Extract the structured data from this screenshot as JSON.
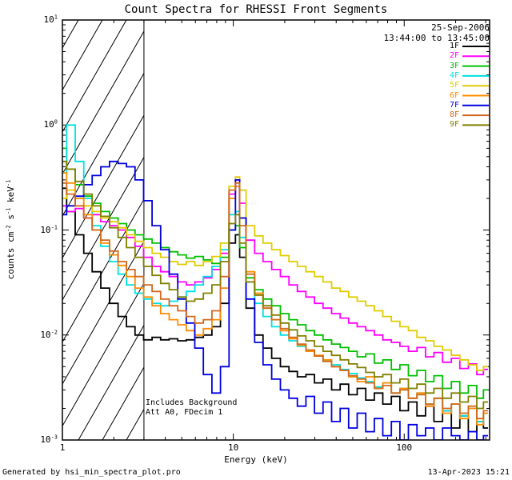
{
  "title": "Count Spectra for RHESSI Front Segments",
  "header": {
    "date": "25-Sep-2006",
    "time_range": "13:44:00 to 13:45:00"
  },
  "annotations": {
    "line1": "Includes Background",
    "line2": "Att A0, FDecim 1"
  },
  "footer": {
    "left": "Generated by hsi_min_spectra_plot.pro",
    "right": "13-Apr-2023 15:21"
  },
  "axes": {
    "xlabel": "Energy (keV)",
    "ylabel_parts": [
      {
        "text": "counts cm"
      },
      {
        "sup": "-2"
      },
      {
        "text": " s"
      },
      {
        "sup": "-1"
      },
      {
        "text": " keV"
      },
      {
        "sup": "-1"
      }
    ],
    "x_ticks": [
      {
        "value": 1,
        "label": "1"
      },
      {
        "value": 10,
        "label": "10"
      },
      {
        "value": 100,
        "label": "100"
      }
    ],
    "y_ticks": [
      {
        "value": 10,
        "base": "10",
        "exp": "1"
      },
      {
        "value": 1,
        "base": "10",
        "exp": "0"
      },
      {
        "value": 0.1,
        "base": "10",
        "exp": "-1"
      },
      {
        "value": 0.01,
        "base": "10",
        "exp": "-2"
      },
      {
        "value": 0.001,
        "base": "10",
        "exp": "-3"
      }
    ]
  },
  "chart_data": {
    "type": "line",
    "style": "histogram-steps",
    "x_scale": "log",
    "y_scale": "log",
    "xlim": [
      1,
      316
    ],
    "ylim": [
      0.001,
      10
    ],
    "xlabel": "Energy (keV)",
    "ylabel": "counts cm-2 s-1 keV-1",
    "hatch_region": {
      "xmin": 1,
      "xmax": 3
    },
    "legend_position": "top-right",
    "x": [
      1.0,
      1.12,
      1.26,
      1.41,
      1.58,
      1.78,
      2.0,
      2.24,
      2.51,
      2.82,
      3.16,
      3.55,
      3.98,
      4.47,
      5.01,
      5.62,
      6.31,
      7.08,
      7.94,
      8.91,
      10.0,
      10.6,
      11.2,
      12.6,
      14.1,
      15.8,
      17.8,
      20.0,
      22.4,
      25.1,
      28.2,
      31.6,
      35.5,
      39.8,
      44.7,
      50.1,
      56.2,
      63.1,
      70.8,
      79.4,
      89.1,
      100,
      112,
      126,
      141,
      158,
      178,
      200,
      224,
      251,
      282,
      300
    ],
    "series": [
      {
        "name": "1F",
        "color": "#000000",
        "values": [
          0.25,
          0.15,
          0.09,
          0.06,
          0.04,
          0.028,
          0.02,
          0.015,
          0.012,
          0.01,
          0.009,
          0.0095,
          0.009,
          0.0092,
          0.0088,
          0.009,
          0.0095,
          0.01,
          0.012,
          0.02,
          0.075,
          0.09,
          0.055,
          0.018,
          0.01,
          0.0075,
          0.006,
          0.005,
          0.0045,
          0.004,
          0.0042,
          0.0035,
          0.0038,
          0.003,
          0.0034,
          0.0027,
          0.0031,
          0.0024,
          0.0028,
          0.0022,
          0.0026,
          0.0019,
          0.0023,
          0.0017,
          0.0021,
          0.0015,
          0.0019,
          0.0013,
          0.0017,
          0.0012,
          0.0015,
          0.0013
        ]
      },
      {
        "name": "2F",
        "color": "#ff00ff",
        "values": [
          0.17,
          0.15,
          0.16,
          0.13,
          0.14,
          0.12,
          0.11,
          0.1,
          0.085,
          0.07,
          0.055,
          0.045,
          0.04,
          0.036,
          0.032,
          0.03,
          0.032,
          0.035,
          0.042,
          0.06,
          0.22,
          0.3,
          0.18,
          0.08,
          0.06,
          0.05,
          0.042,
          0.036,
          0.03,
          0.026,
          0.023,
          0.02,
          0.018,
          0.016,
          0.0145,
          0.013,
          0.012,
          0.011,
          0.01,
          0.009,
          0.0085,
          0.0078,
          0.007,
          0.0076,
          0.0062,
          0.0068,
          0.0055,
          0.006,
          0.0048,
          0.0053,
          0.0042,
          0.0047
        ]
      },
      {
        "name": "3F",
        "color": "#00c000",
        "values": [
          0.6,
          0.38,
          0.27,
          0.21,
          0.18,
          0.15,
          0.13,
          0.115,
          0.1,
          0.09,
          0.082,
          0.075,
          0.068,
          0.062,
          0.058,
          0.054,
          0.056,
          0.052,
          0.048,
          0.055,
          0.1,
          0.11,
          0.068,
          0.035,
          0.027,
          0.022,
          0.019,
          0.016,
          0.014,
          0.0125,
          0.011,
          0.01,
          0.009,
          0.0082,
          0.0076,
          0.007,
          0.0062,
          0.0066,
          0.0054,
          0.0058,
          0.0047,
          0.0052,
          0.0041,
          0.0046,
          0.0036,
          0.0041,
          0.0031,
          0.0036,
          0.0028,
          0.0033,
          0.0025,
          0.003
        ]
      },
      {
        "name": "4F",
        "color": "#00e0e0",
        "values": [
          0.35,
          1.0,
          0.45,
          0.2,
          0.11,
          0.07,
          0.05,
          0.038,
          0.03,
          0.025,
          0.022,
          0.02,
          0.019,
          0.021,
          0.023,
          0.026,
          0.03,
          0.036,
          0.045,
          0.065,
          0.14,
          0.15,
          0.085,
          0.032,
          0.02,
          0.015,
          0.012,
          0.01,
          0.0088,
          0.0078,
          0.007,
          0.0063,
          0.0057,
          0.0052,
          0.0047,
          0.0043,
          0.0039,
          0.0036,
          0.0032,
          0.0035,
          0.0028,
          0.0031,
          0.0025,
          0.0028,
          0.0022,
          0.0025,
          0.0019,
          0.0022,
          0.0017,
          0.002,
          0.0015,
          0.0018
        ]
      },
      {
        "name": "5F",
        "color": "#e0cc00",
        "values": [
          0.2,
          0.24,
          0.2,
          0.17,
          0.15,
          0.13,
          0.12,
          0.105,
          0.09,
          0.078,
          0.068,
          0.06,
          0.055,
          0.05,
          0.047,
          0.05,
          0.046,
          0.05,
          0.056,
          0.075,
          0.26,
          0.32,
          0.24,
          0.11,
          0.088,
          0.075,
          0.065,
          0.057,
          0.05,
          0.045,
          0.04,
          0.036,
          0.032,
          0.028,
          0.026,
          0.023,
          0.021,
          0.019,
          0.017,
          0.015,
          0.0135,
          0.012,
          0.011,
          0.0095,
          0.0088,
          0.0078,
          0.0072,
          0.0064,
          0.0058,
          0.0052,
          0.0046,
          0.005
        ]
      },
      {
        "name": "6F",
        "color": "#ff8c00",
        "values": [
          0.35,
          0.28,
          0.2,
          0.14,
          0.1,
          0.075,
          0.058,
          0.046,
          0.036,
          0.028,
          0.023,
          0.019,
          0.016,
          0.014,
          0.0125,
          0.011,
          0.01,
          0.0115,
          0.014,
          0.028,
          0.2,
          0.26,
          0.13,
          0.04,
          0.025,
          0.018,
          0.014,
          0.011,
          0.0092,
          0.008,
          0.007,
          0.0064,
          0.0058,
          0.005,
          0.0046,
          0.004,
          0.0036,
          0.004,
          0.0031,
          0.0035,
          0.0028,
          0.0031,
          0.0025,
          0.0028,
          0.0021,
          0.0025,
          0.0018,
          0.0022,
          0.0016,
          0.002,
          0.0014,
          0.0018
        ]
      },
      {
        "name": "7F",
        "color": "#0000e0",
        "values": [
          0.14,
          0.17,
          0.21,
          0.27,
          0.33,
          0.4,
          0.45,
          0.43,
          0.4,
          0.3,
          0.19,
          0.11,
          0.065,
          0.038,
          0.022,
          0.013,
          0.0075,
          0.0042,
          0.0028,
          0.005,
          0.1,
          0.3,
          0.13,
          0.022,
          0.0085,
          0.0052,
          0.0038,
          0.003,
          0.0025,
          0.0021,
          0.0026,
          0.0018,
          0.0023,
          0.0015,
          0.002,
          0.0013,
          0.0018,
          0.0012,
          0.0016,
          0.0011,
          0.0015,
          0.001,
          0.0014,
          0.0011,
          0.0013,
          0.001,
          0.0013,
          0.0011,
          0.001,
          0.0012,
          0.001,
          0.0011
        ]
      },
      {
        "name": "8F",
        "color": "#d2691e",
        "values": [
          0.28,
          0.22,
          0.17,
          0.13,
          0.1,
          0.08,
          0.063,
          0.05,
          0.042,
          0.036,
          0.03,
          0.026,
          0.022,
          0.019,
          0.017,
          0.015,
          0.013,
          0.014,
          0.017,
          0.036,
          0.24,
          0.28,
          0.11,
          0.038,
          0.024,
          0.018,
          0.014,
          0.0115,
          0.0095,
          0.0082,
          0.0072,
          0.0063,
          0.0056,
          0.005,
          0.0046,
          0.0041,
          0.0038,
          0.0035,
          0.0031,
          0.0033,
          0.0028,
          0.003,
          0.0025,
          0.0027,
          0.0022,
          0.0025,
          0.002,
          0.0022,
          0.0018,
          0.0021,
          0.0016,
          0.0019
        ]
      },
      {
        "name": "9F",
        "color": "#808000",
        "values": [
          0.45,
          0.38,
          0.29,
          0.22,
          0.17,
          0.135,
          0.105,
          0.085,
          0.068,
          0.055,
          0.045,
          0.037,
          0.031,
          0.027,
          0.023,
          0.021,
          0.022,
          0.025,
          0.03,
          0.05,
          0.115,
          0.14,
          0.075,
          0.032,
          0.024,
          0.019,
          0.0155,
          0.013,
          0.0112,
          0.0098,
          0.0088,
          0.0078,
          0.007,
          0.0064,
          0.0058,
          0.0053,
          0.0049,
          0.0044,
          0.004,
          0.0042,
          0.0035,
          0.0038,
          0.0031,
          0.0034,
          0.0028,
          0.0031,
          0.0025,
          0.0028,
          0.0023,
          0.0026,
          0.002,
          0.0023
        ]
      }
    ]
  }
}
